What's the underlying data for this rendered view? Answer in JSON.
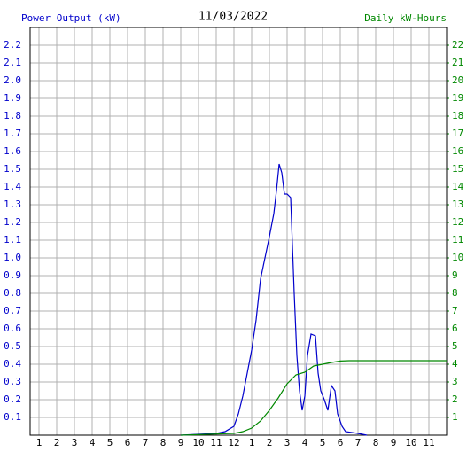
{
  "chart_data": {
    "type": "line",
    "title": "11/03/2022",
    "y_label": "Power Output (kW)",
    "y2_label": "Daily kW-Hours",
    "xlim": [
      0.5,
      24
    ],
    "xticks": [
      1,
      2,
      3,
      4,
      5,
      6,
      7,
      8,
      9,
      10,
      11,
      12,
      {
        "value": 13,
        "label": "1"
      },
      {
        "value": 14,
        "label": "2"
      },
      {
        "value": 15,
        "label": "3"
      },
      {
        "value": 16,
        "label": "4"
      },
      {
        "value": 17,
        "label": "5"
      },
      {
        "value": 18,
        "label": "6"
      },
      {
        "value": 19,
        "label": "7"
      },
      {
        "value": 20,
        "label": "8"
      },
      {
        "value": 21,
        "label": "9"
      },
      {
        "value": 22,
        "label": "10"
      },
      {
        "value": 23,
        "label": "11"
      }
    ],
    "ylim": [
      0,
      2.3
    ],
    "yticks": [
      0.1,
      0.2,
      0.3,
      0.4,
      0.5,
      0.6,
      0.7,
      0.8,
      0.9,
      {
        "value": 1,
        "label": "1.0"
      },
      1.1,
      1.2,
      1.3,
      1.4,
      1.5,
      1.6,
      1.7,
      1.8,
      1.9,
      {
        "value": 2,
        "label": "2.0"
      },
      2.1,
      2.2
    ],
    "y2lim": [
      0,
      23
    ],
    "y2ticks": [
      1,
      2,
      3,
      4,
      5,
      6,
      7,
      8,
      9,
      10,
      11,
      12,
      13,
      14,
      15,
      16,
      17,
      18,
      19,
      20,
      21,
      22
    ],
    "grid": true,
    "series": [
      {
        "name": "Power Output (kW)",
        "color": "#0000cc",
        "x": [
          9,
          10,
          11,
          11.5,
          12,
          12.25,
          12.5,
          12.75,
          13,
          13.25,
          13.5,
          13.75,
          14,
          14.25,
          14.4,
          14.55,
          14.7,
          14.85,
          15,
          15.2,
          15.4,
          15.55,
          15.7,
          15.85,
          16,
          16.15,
          16.35,
          16.6,
          16.75,
          16.9,
          17.1,
          17.3,
          17.5,
          17.7,
          17.85,
          18.1,
          18.3,
          19,
          19.5
        ],
        "values": [
          0,
          0.005,
          0.01,
          0.02,
          0.05,
          0.12,
          0.22,
          0.35,
          0.48,
          0.65,
          0.88,
          1.0,
          1.12,
          1.25,
          1.38,
          1.53,
          1.48,
          1.36,
          1.36,
          1.34,
          0.8,
          0.45,
          0.25,
          0.14,
          0.22,
          0.45,
          0.57,
          0.56,
          0.35,
          0.25,
          0.2,
          0.14,
          0.28,
          0.25,
          0.12,
          0.05,
          0.02,
          0.01,
          0
        ]
      },
      {
        "name": "Daily kW-Hours",
        "color": "#008800",
        "axis": "y2",
        "x": [
          9,
          12,
          12.5,
          13,
          13.5,
          14,
          14.5,
          15,
          15.5,
          16,
          16.5,
          17,
          17.5,
          18,
          18.5,
          24
        ],
        "values": [
          0,
          0.1,
          0.2,
          0.4,
          0.8,
          1.4,
          2.1,
          2.9,
          3.4,
          3.55,
          3.9,
          4.0,
          4.1,
          4.18,
          4.2,
          4.2
        ]
      }
    ]
  }
}
